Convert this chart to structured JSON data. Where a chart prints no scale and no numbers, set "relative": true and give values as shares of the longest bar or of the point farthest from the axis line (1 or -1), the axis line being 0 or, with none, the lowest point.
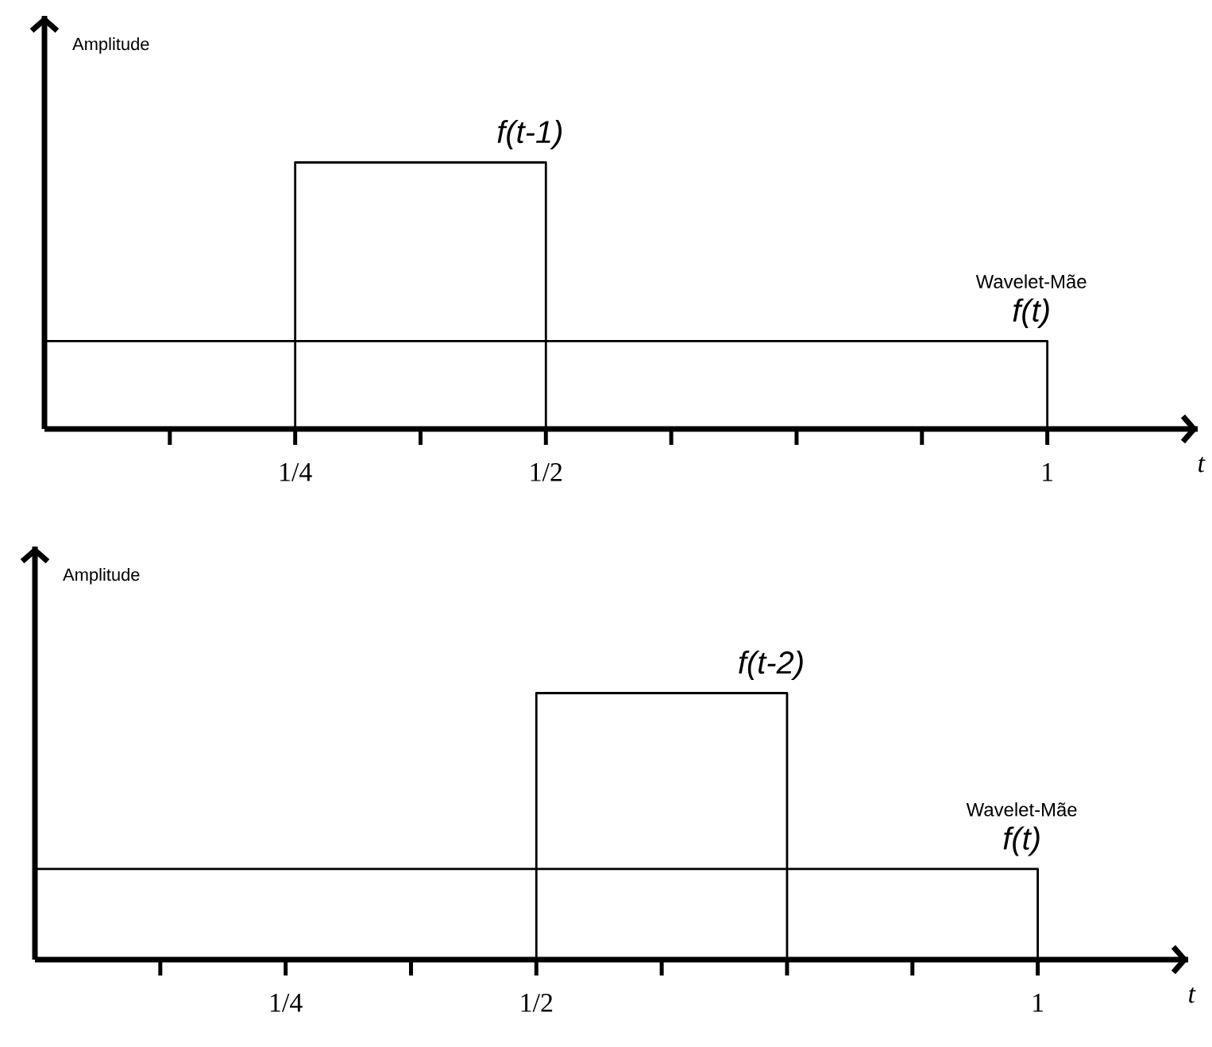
{
  "chart_data": [
    {
      "type": "line",
      "relative": true,
      "xlabel": "t",
      "ylabel": "Amplitude",
      "annotations": [
        "Wavelet-Mãe"
      ],
      "tick_labels": "x",
      "xlim": [
        0,
        1.15
      ],
      "xticks": [
        {
          "value": 0.125,
          "label": null
        },
        {
          "value": 0.25,
          "label": "1/4"
        },
        {
          "value": 0.375,
          "label": null
        },
        {
          "value": 0.5,
          "label": "1/2"
        },
        {
          "value": 0.625,
          "label": null
        },
        {
          "value": 0.75,
          "label": null
        },
        {
          "value": 0.875,
          "label": null
        },
        {
          "value": 1,
          "label": "1"
        }
      ],
      "series": [
        {
          "name": "f(t)",
          "color": "#000000",
          "x": [
            0,
            1,
            1
          ],
          "values": [
            0.33,
            0.33,
            0
          ]
        },
        {
          "name": "f(t-1)",
          "color": "#000000",
          "x": [
            0.25,
            0.25,
            0.5,
            0.5
          ],
          "values": [
            0,
            1,
            1,
            0
          ]
        }
      ]
    },
    {
      "type": "line",
      "relative": true,
      "xlabel": "t",
      "ylabel": "Amplitude",
      "annotations": [
        "Wavelet-Mãe"
      ],
      "tick_labels": "x",
      "xlim": [
        0,
        1.15
      ],
      "xticks": [
        {
          "value": 0.125,
          "label": null
        },
        {
          "value": 0.25,
          "label": "1/4"
        },
        {
          "value": 0.375,
          "label": null
        },
        {
          "value": 0.5,
          "label": "1/2"
        },
        {
          "value": 0.625,
          "label": null
        },
        {
          "value": 0.75,
          "label": null
        },
        {
          "value": 0.875,
          "label": null
        },
        {
          "value": 1,
          "label": "1"
        }
      ],
      "series": [
        {
          "name": "f(t)",
          "color": "#000000",
          "x": [
            0,
            1,
            1
          ],
          "values": [
            0.34,
            0.34,
            0
          ]
        },
        {
          "name": "f(t-2)",
          "color": "#000000",
          "x": [
            0.5,
            0.5,
            0.75,
            0.75
          ],
          "values": [
            0,
            1,
            1,
            0
          ]
        }
      ]
    }
  ]
}
